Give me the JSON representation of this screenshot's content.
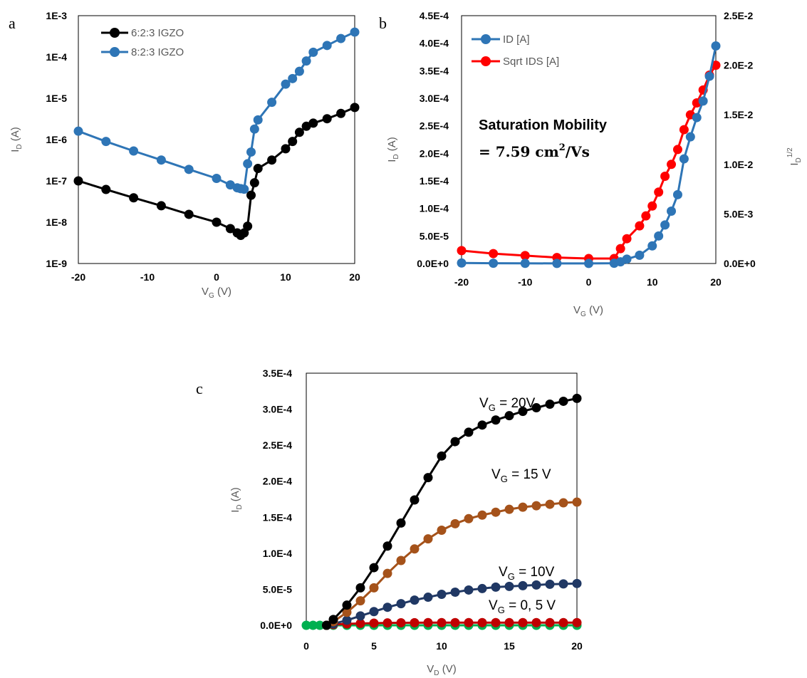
{
  "chart_data": [
    {
      "panel": "a",
      "type": "line",
      "xlabel": {
        "main": "V",
        "sub": "G",
        "rest": " (V)"
      },
      "ylabel": {
        "main": "I",
        "sub": "D",
        "rest": " (A)"
      },
      "xlim": [
        -20,
        20
      ],
      "xticks": [
        "-20",
        "-10",
        "0",
        "10",
        "20"
      ],
      "ylim_log10": [
        -9,
        -3
      ],
      "yscale": "log",
      "yticks": [
        "1E-9",
        "1E-8",
        "1E-7",
        "1E-6",
        "1E-5",
        "1E-4",
        "1E-3"
      ],
      "legend": "top-left",
      "series": [
        {
          "name": "6:2:3 IGZO",
          "color": "#000000",
          "x": [
            -20,
            -16,
            -12,
            -8,
            -4,
            0,
            2,
            3,
            3.5,
            4,
            4.5,
            5,
            5.5,
            6,
            8,
            10,
            11,
            12,
            13,
            14,
            16,
            18,
            20
          ],
          "y": [
            1e-07,
            6.2e-08,
            3.9e-08,
            2.5e-08,
            1.55e-08,
            1e-08,
            7e-09,
            5.5e-09,
            4.8e-09,
            5.5e-09,
            8e-09,
            4.5e-08,
            9e-08,
            2e-07,
            3.2e-07,
            6e-07,
            9e-07,
            1.5e-06,
            2.1e-06,
            2.5e-06,
            3.2e-06,
            4.3e-06,
            6e-06
          ]
        },
        {
          "name": "8:2:3 IGZO",
          "color": "#2e75b6",
          "x": [
            -20,
            -16,
            -12,
            -8,
            -4,
            0,
            2,
            3,
            3.5,
            4,
            4.5,
            5,
            5.5,
            6,
            8,
            10,
            11,
            12,
            13,
            14,
            16,
            18,
            20
          ],
          "y": [
            1.6e-06,
            9e-07,
            5.3e-07,
            3.2e-07,
            1.9e-07,
            1.15e-07,
            8e-08,
            6.8e-08,
            6.5e-08,
            6.3e-08,
            2.6e-07,
            5e-07,
            1.8e-06,
            3e-06,
            8e-06,
            2.2e-05,
            3e-05,
            4.5e-05,
            8e-05,
            0.00013,
            0.00019,
            0.00028,
            0.0004
          ]
        }
      ]
    },
    {
      "panel": "b",
      "type": "line",
      "xlabel": {
        "main": "V",
        "sub": "G",
        "rest": " (V)"
      },
      "ylabel": {
        "main": "I",
        "sub": "D",
        "rest": " (A)"
      },
      "y2label": {
        "main": "I",
        "sub": "D",
        "sup": "1/2"
      },
      "xlim": [
        -20,
        20
      ],
      "xticks": [
        "-20",
        "-10",
        "0",
        "10",
        "20"
      ],
      "ylim": [
        0,
        0.00045
      ],
      "yticks": [
        "0.0E+0",
        "5.0E-5",
        "1.0E-4",
        "1.5E-4",
        "2.0E-4",
        "2.5E-4",
        "3.0E-4",
        "3.5E-4",
        "4.0E-4",
        "4.5E-4"
      ],
      "y2lim": [
        0,
        0.025
      ],
      "y2ticks": [
        "0.0E+0",
        "5.0E-3",
        "1.0E-2",
        "1.5E-2",
        "2.0E-2",
        "2.5E-2"
      ],
      "legend": "top-left",
      "annotation_line1": "Saturation Mobility",
      "annotation_line2_prefix": "= 7.59 cm",
      "annotation_line2_sup": "2",
      "annotation_line2_suffix": "/Vs",
      "series": [
        {
          "name": "ID [A]",
          "axis": "left",
          "color": "#2e75b6",
          "x": [
            -20,
            -15,
            -10,
            -5,
            0,
            4,
            5,
            6,
            8,
            10,
            11,
            12,
            13,
            14,
            15,
            16,
            17,
            18,
            19,
            20
          ],
          "y": [
            1e-06,
            5e-07,
            3e-07,
            2e-07,
            1e-07,
            5e-07,
            3e-06,
            8e-06,
            1.5e-05,
            3.2e-05,
            5e-05,
            7e-05,
            9.5e-05,
            0.000125,
            0.00019,
            0.00023,
            0.000265,
            0.000295,
            0.00034,
            0.000395
          ]
        },
        {
          "name": "Sqrt IDS [A]",
          "axis": "right",
          "color": "#ff0000",
          "x": [
            -20,
            -15,
            -10,
            -5,
            0,
            4,
            5,
            6,
            8,
            9,
            10,
            11,
            12,
            13,
            14,
            15,
            16,
            17,
            18,
            19,
            20
          ],
          "y": [
            0.0013,
            0.001,
            0.0008,
            0.0006,
            0.0005,
            0.0005,
            0.0015,
            0.0025,
            0.0038,
            0.0048,
            0.0058,
            0.0072,
            0.0088,
            0.01,
            0.0115,
            0.0135,
            0.015,
            0.0162,
            0.0175,
            0.019,
            0.02
          ]
        }
      ]
    },
    {
      "panel": "c",
      "type": "line",
      "xlabel": {
        "main": "V",
        "sub": "D",
        "rest": " (V)"
      },
      "ylabel": {
        "main": "I",
        "sub": "D",
        "rest": " (A)"
      },
      "xlim": [
        0,
        20
      ],
      "xticks": [
        "0",
        "5",
        "10",
        "15",
        "20"
      ],
      "ylim": [
        0,
        0.00035
      ],
      "yticks": [
        "0.0E+0",
        "5.0E-5",
        "1.0E-4",
        "1.5E-4",
        "2.0E-4",
        "2.5E-4",
        "3.0E-4",
        "3.5E-4"
      ],
      "series": [
        {
          "name": "V_G = 20V",
          "color": "#000000",
          "label_main": "V",
          "label_sub": "G",
          "label_rest": " = 20V",
          "x": [
            1.5,
            2,
            3,
            4,
            5,
            6,
            7,
            8,
            9,
            10,
            11,
            12,
            13,
            14,
            15,
            16,
            17,
            18,
            19,
            20
          ],
          "y": [
            0,
            8e-06,
            2.8e-05,
            5.2e-05,
            8e-05,
            0.00011,
            0.000142,
            0.000174,
            0.000205,
            0.000235,
            0.000255,
            0.000268,
            0.000278,
            0.000285,
            0.000291,
            0.000297,
            0.000302,
            0.000307,
            0.000311,
            0.000315
          ]
        },
        {
          "name": "V_G = 15 V",
          "color": "#a5521a",
          "label_main": "V",
          "label_sub": "G",
          "label_rest": " = 15 V",
          "x": [
            1.5,
            2,
            3,
            4,
            5,
            6,
            7,
            8,
            9,
            10,
            11,
            12,
            13,
            14,
            15,
            16,
            17,
            18,
            19,
            20
          ],
          "y": [
            0,
            5e-06,
            1.8e-05,
            3.4e-05,
            5.2e-05,
            7.2e-05,
            9e-05,
            0.000106,
            0.00012,
            0.000132,
            0.000141,
            0.000148,
            0.000153,
            0.000157,
            0.000161,
            0.000164,
            0.000166,
            0.000168,
            0.00017,
            0.000171
          ]
        },
        {
          "name": "V_G = 10V",
          "color": "#203864",
          "label_main": "V",
          "label_sub": "G",
          "label_rest": " = 10V",
          "x": [
            1.5,
            2,
            3,
            4,
            5,
            6,
            7,
            8,
            9,
            10,
            11,
            12,
            13,
            14,
            15,
            16,
            17,
            18,
            19,
            20
          ],
          "y": [
            0,
            2e-06,
            7e-06,
            1.3e-05,
            1.9e-05,
            2.5e-05,
            3e-05,
            3.5e-05,
            3.9e-05,
            4.3e-05,
            4.6e-05,
            4.9e-05,
            5.1e-05,
            5.3e-05,
            5.4e-05,
            5.5e-05,
            5.6e-05,
            5.7e-05,
            5.75e-05,
            5.8e-05
          ]
        },
        {
          "name": "V_G = 0, 5 V (5 V)",
          "color": "#c00000",
          "label_main": "V",
          "label_sub": "G",
          "label_rest": " = 0, 5 V",
          "x": [
            1.5,
            2,
            3,
            4,
            5,
            6,
            7,
            8,
            9,
            10,
            11,
            12,
            13,
            14,
            15,
            16,
            17,
            18,
            19,
            20
          ],
          "y": [
            0,
            1e-06,
            2e-06,
            2.6e-06,
            3e-06,
            3.3e-06,
            3.5e-06,
            3.6e-06,
            3.7e-06,
            3.7e-06,
            3.7e-06,
            3.7e-06,
            3.7e-06,
            3.7e-06,
            3.7e-06,
            3.7e-06,
            3.7e-06,
            3.7e-06,
            3.7e-06,
            3.7e-06
          ]
        },
        {
          "name": "V_G = 0, 5 V (0 V)",
          "color": "#00b050",
          "x": [
            0,
            0.5,
            1,
            1.5,
            2,
            3,
            4,
            5,
            6,
            7,
            8,
            9,
            10,
            11,
            12,
            13,
            14,
            15,
            16,
            17,
            18,
            19,
            20
          ],
          "y": [
            0,
            0,
            0,
            0,
            0,
            0,
            0,
            0,
            0,
            0,
            0,
            0,
            0,
            0,
            0,
            0,
            0,
            0,
            0,
            0,
            0,
            0,
            0
          ]
        }
      ]
    }
  ]
}
